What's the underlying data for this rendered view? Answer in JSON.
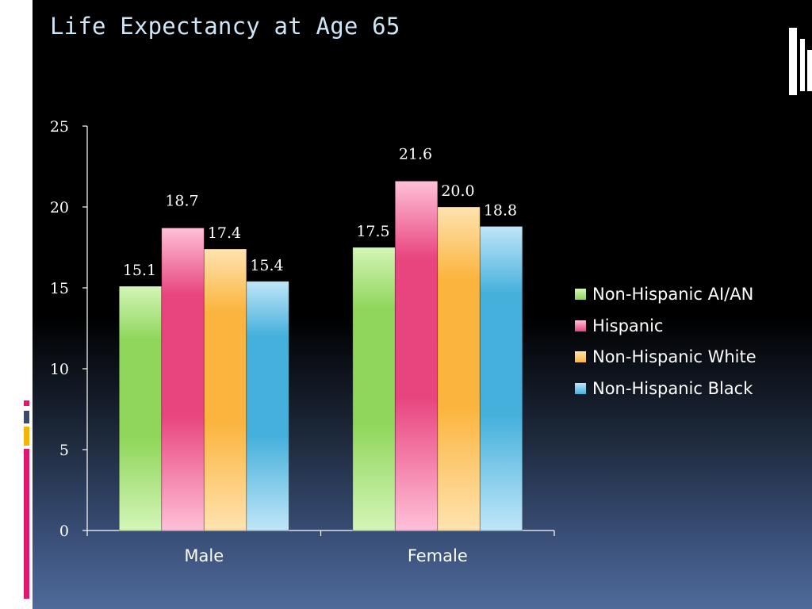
{
  "title": "Life Expectancy at Age 65",
  "colors": {
    "background_top": "#000000",
    "background_bottom": "#4f6a9a",
    "title": "#cfe6f7",
    "text": "#ffffff",
    "accent_pink": "#e0196e",
    "accent_navy": "#3a4a6a",
    "accent_gold": "#f5b20a"
  },
  "chart_data": {
    "type": "bar",
    "title": "Life Expectancy at Age 65",
    "xlabel": "",
    "ylabel": "",
    "categories": [
      "Male",
      "Female"
    ],
    "ylim": [
      0,
      25
    ],
    "yticks": [
      0,
      5,
      10,
      15,
      20,
      25
    ],
    "grid": false,
    "legend_position": "right",
    "series": [
      {
        "name": "Non-Hispanic AI/AN",
        "values": [
          15.1,
          17.5
        ],
        "labels": [
          "15.1",
          "17.5"
        ],
        "color": "#8fd65a",
        "light": "#d4f5b8"
      },
      {
        "name": "Hispanic",
        "values": [
          18.7,
          21.6
        ],
        "labels": [
          "18.7",
          "21.6"
        ],
        "color": "#e8457f",
        "light": "#ffc0d8"
      },
      {
        "name": "Non-Hispanic White",
        "values": [
          17.4,
          20.0
        ],
        "labels": [
          "17.4",
          "20.0"
        ],
        "color": "#fbb53f",
        "light": "#ffe3b0"
      },
      {
        "name": "Non-Hispanic Black",
        "values": [
          15.4,
          18.8
        ],
        "labels": [
          "15.4",
          "18.8"
        ],
        "color": "#45b0dc",
        "light": "#c0e6f8"
      }
    ]
  }
}
